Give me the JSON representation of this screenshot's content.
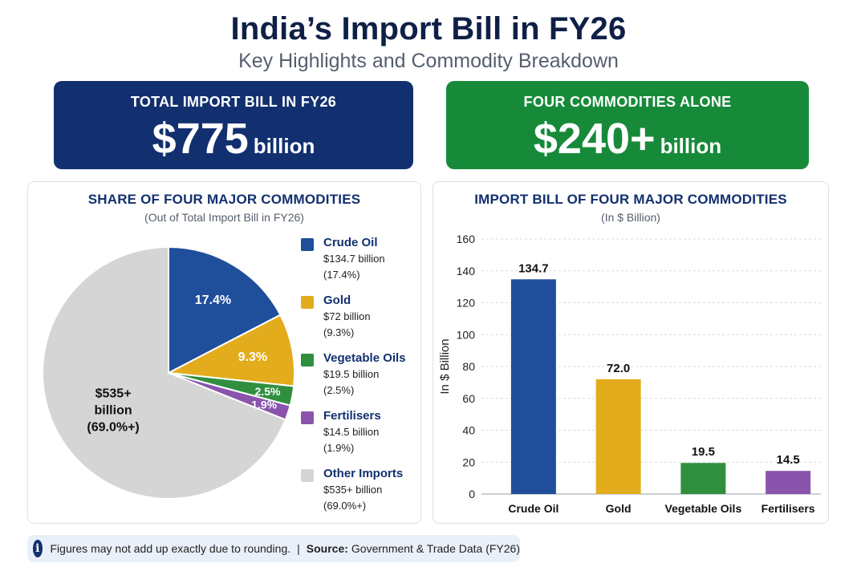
{
  "title": "India’s Import Bill in FY26",
  "subtitle": "Key Highlights and Commodity Breakdown",
  "stats": {
    "total": {
      "label": "TOTAL IMPORT BILL IN FY26",
      "value": "$775",
      "unit": "billion",
      "color": "#12306f"
    },
    "four": {
      "label": "FOUR COMMODITIES ALONE",
      "value": "$240+",
      "unit": "billion",
      "color": "#178a3a"
    }
  },
  "pie_panel": {
    "title": "SHARE OF FOUR MAJOR COMMODITIES",
    "subtitle": "(Out of Total Import Bill in FY26)",
    "legend": [
      {
        "name": "Crude Oil",
        "amount": "$134.7 billion",
        "share": "(17.4%)",
        "color": "#1f4e9b"
      },
      {
        "name": "Gold",
        "amount": "$72 billion",
        "share": "(9.3%)",
        "color": "#e2ac1c"
      },
      {
        "name": "Vegetable Oils",
        "amount": "$19.5 billion",
        "share": "(2.5%)",
        "color": "#2f8f3f"
      },
      {
        "name": "Fertilisers",
        "amount": "$14.5 billion",
        "share": "(1.9%)",
        "color": "#8a54ad"
      },
      {
        "name": "Other Imports",
        "amount": "$535+ billion",
        "share": "(69.0%+)",
        "color": "#d5d5d5"
      }
    ]
  },
  "bar_panel": {
    "title": "IMPORT BILL OF FOUR MAJOR COMMODITIES",
    "subtitle": "(In $ Billion)"
  },
  "chart_data": [
    {
      "type": "pie",
      "title": "SHARE OF FOUR MAJOR COMMODITIES",
      "subtitle": "(Out of Total Import Bill in FY26)",
      "slices": [
        {
          "name": "Crude Oil",
          "value": 17.4,
          "label": "17.4%",
          "color": "#1f4e9b"
        },
        {
          "name": "Gold",
          "value": 9.3,
          "label": "9.3%",
          "color": "#e2ac1c"
        },
        {
          "name": "Vegetable Oils",
          "value": 2.5,
          "label": "2.5%",
          "color": "#2f8f3f"
        },
        {
          "name": "Fertilisers",
          "value": 1.9,
          "label": "1.9%",
          "color": "#8a54ad"
        },
        {
          "name": "Other Imports",
          "value": 69.0,
          "label": [
            "$535+",
            "billion",
            "(69.0%+)"
          ],
          "color": "#d5d5d5"
        }
      ],
      "start": "12 o'clock",
      "direction": "clockwise"
    },
    {
      "type": "bar",
      "title": "IMPORT BILL OF FOUR MAJOR COMMODITIES",
      "subtitle": "(In $ Billion)",
      "categories": [
        "Crude Oil",
        "Gold",
        "Vegetable Oils",
        "Fertilisers"
      ],
      "values": [
        134.7,
        72.0,
        19.5,
        14.5
      ],
      "value_labels": [
        "134.7",
        "72.0",
        "19.5",
        "14.5"
      ],
      "colors": [
        "#1f4e9b",
        "#e2ac1c",
        "#2f8f3f",
        "#8a54ad"
      ],
      "xlabel": "",
      "ylabel": "In $ Billion",
      "ylim": [
        0,
        160
      ],
      "yticks": [
        0,
        20,
        40,
        60,
        80,
        100,
        120,
        140,
        160
      ],
      "grid": true
    }
  ],
  "footer": {
    "icon": "info-icon",
    "note": "Figures may not add up exactly due to rounding.",
    "separator": "|",
    "source_label": "Source:",
    "source": "Government & Trade Data (FY26)"
  }
}
